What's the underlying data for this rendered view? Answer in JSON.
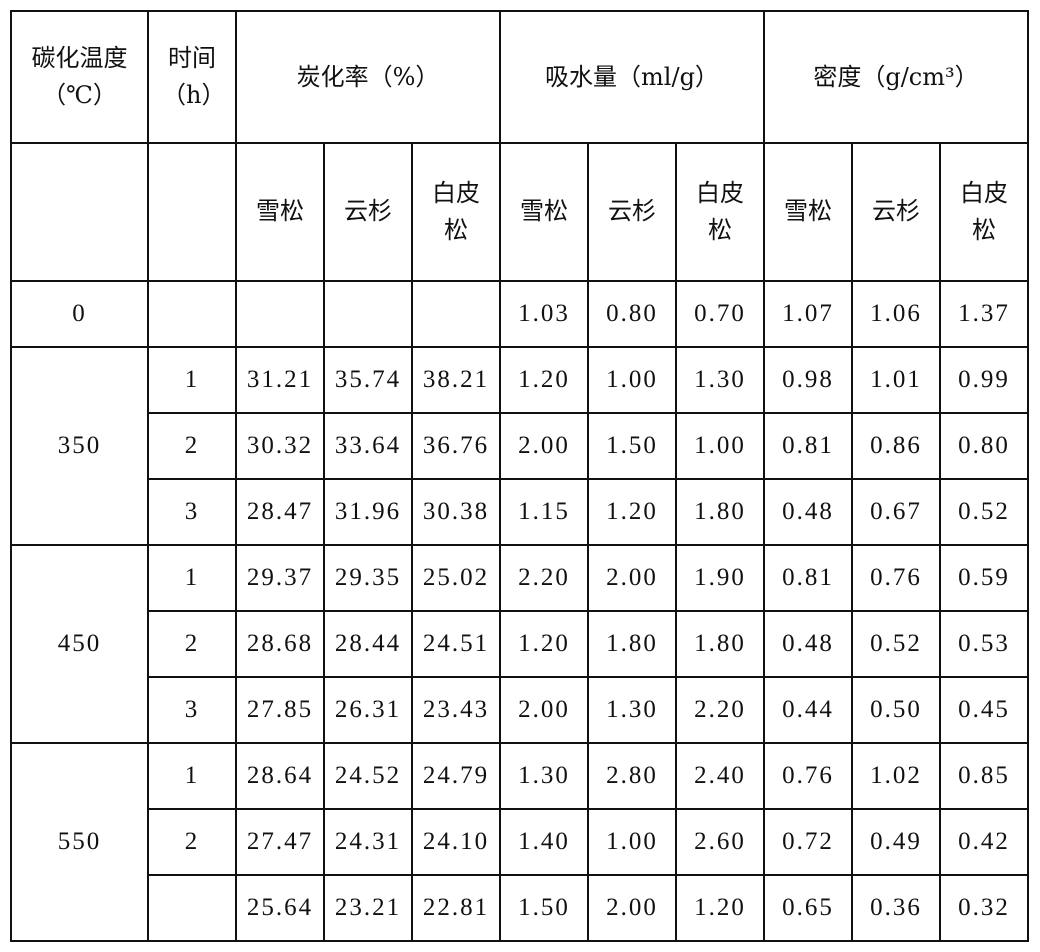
{
  "header": {
    "temp": "碳化温度（℃）",
    "time": "时间（h）",
    "groups": [
      "炭化率（%）",
      "吸水量（ml/g）",
      "密度（g/cm³）"
    ],
    "species": [
      "雪松",
      "云杉",
      "白皮松"
    ]
  },
  "rows": [
    {
      "temp": "0",
      "time": "",
      "values": [
        "",
        "",
        "",
        "1.03",
        "0.80",
        "0.70",
        "1.07",
        "1.06",
        "1.37"
      ]
    },
    {
      "temp": "350",
      "time": "1",
      "values": [
        "31.21",
        "35.74",
        "38.21",
        "1.20",
        "1.00",
        "1.30",
        "0.98",
        "1.01",
        "0.99"
      ]
    },
    {
      "temp": "",
      "time": "2",
      "values": [
        "30.32",
        "33.64",
        "36.76",
        "2.00",
        "1.50",
        "1.00",
        "0.81",
        "0.86",
        "0.80"
      ]
    },
    {
      "temp": "",
      "time": "3",
      "values": [
        "28.47",
        "31.96",
        "30.38",
        "1.15",
        "1.20",
        "1.80",
        "0.48",
        "0.67",
        "0.52"
      ]
    },
    {
      "temp": "450",
      "time": "1",
      "values": [
        "29.37",
        "29.35",
        "25.02",
        "2.20",
        "2.00",
        "1.90",
        "0.81",
        "0.76",
        "0.59"
      ]
    },
    {
      "temp": "",
      "time": "2",
      "values": [
        "28.68",
        "28.44",
        "24.51",
        "1.20",
        "1.80",
        "1.80",
        "0.48",
        "0.52",
        "0.53"
      ]
    },
    {
      "temp": "",
      "time": "3",
      "values": [
        "27.85",
        "26.31",
        "23.43",
        "2.00",
        "1.30",
        "2.20",
        "0.44",
        "0.50",
        "0.45"
      ]
    },
    {
      "temp": "550",
      "time": "1",
      "values": [
        "28.64",
        "24.52",
        "24.79",
        "1.30",
        "2.80",
        "2.40",
        "0.76",
        "1.02",
        "0.85"
      ]
    },
    {
      "temp": "",
      "time": "2",
      "values": [
        "27.47",
        "24.31",
        "24.10",
        "1.40",
        "1.00",
        "2.60",
        "0.72",
        "0.49",
        "0.42"
      ]
    },
    {
      "temp": "",
      "time": "",
      "values": [
        "25.64",
        "23.21",
        "22.81",
        "1.50",
        "2.00",
        "1.20",
        "0.65",
        "0.36",
        "0.32"
      ]
    }
  ]
}
